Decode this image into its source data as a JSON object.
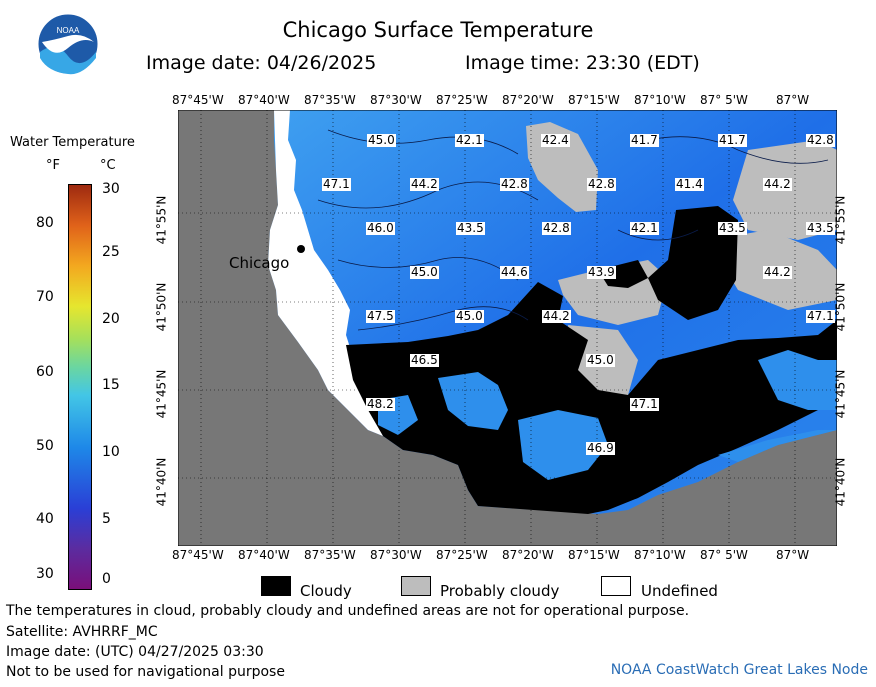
{
  "header": {
    "title": "Chicago Surface Temperature",
    "image_date": "Image date: 04/26/2025",
    "image_time": "Image time: 23:30 (EDT)",
    "logo_text": "NOAA"
  },
  "colorbar": {
    "title": "Water Temperature",
    "unit_f": "°F",
    "unit_c": "°C",
    "f_ticks": [
      "30",
      "40",
      "50",
      "60",
      "70",
      "80"
    ],
    "c_ticks": [
      "0",
      "5",
      "10",
      "15",
      "20",
      "25",
      "30"
    ]
  },
  "map": {
    "lon_labels": [
      "87°45'W",
      "87°40'W",
      "87°35'W",
      "87°30'W",
      "87°25'W",
      "87°20'W",
      "87°15'W",
      "87°10'W",
      "87° 5'W",
      "87°W"
    ],
    "lat_labels": [
      "41°55'N",
      "41°50'N",
      "41°45'N",
      "41°40'N"
    ],
    "city": "Chicago",
    "temperature_labels": [
      "45.0",
      "42.1",
      "42.4",
      "41.7",
      "41.7",
      "42.8",
      "47.1",
      "44.2",
      "42.8",
      "42.8",
      "41.4",
      "44.2",
      "46.0",
      "43.5",
      "42.8",
      "42.1",
      "43.5",
      "43.5",
      "45.0",
      "44.6",
      "43.9",
      "44.2",
      "47.5",
      "45.0",
      "44.2",
      "47.1",
      "46.5",
      "45.0",
      "48.2",
      "47.1",
      "46.9"
    ],
    "colors": {
      "land": "#777777",
      "cloudy": "#000000",
      "probably_cloudy": "#bdbdbd",
      "undefined": "#ffffff",
      "water_cold": "#1f6fe8",
      "water_warm": "#3fa0f0"
    }
  },
  "legend": {
    "cloudy": "Cloudy",
    "probably_cloudy": "Probably cloudy",
    "undefined": "Undefined"
  },
  "footer": {
    "disclaimer": "The temperatures in cloud, probably cloudy and undefined areas are not for operational purpose.",
    "satellite": "Satellite: AVHRRF_MC",
    "utc_date": "Image date: (UTC) 04/27/2025  03:30",
    "nav_warning": "Not to be used for navigational purpose",
    "credit": "NOAA CoastWatch Great Lakes Node"
  }
}
